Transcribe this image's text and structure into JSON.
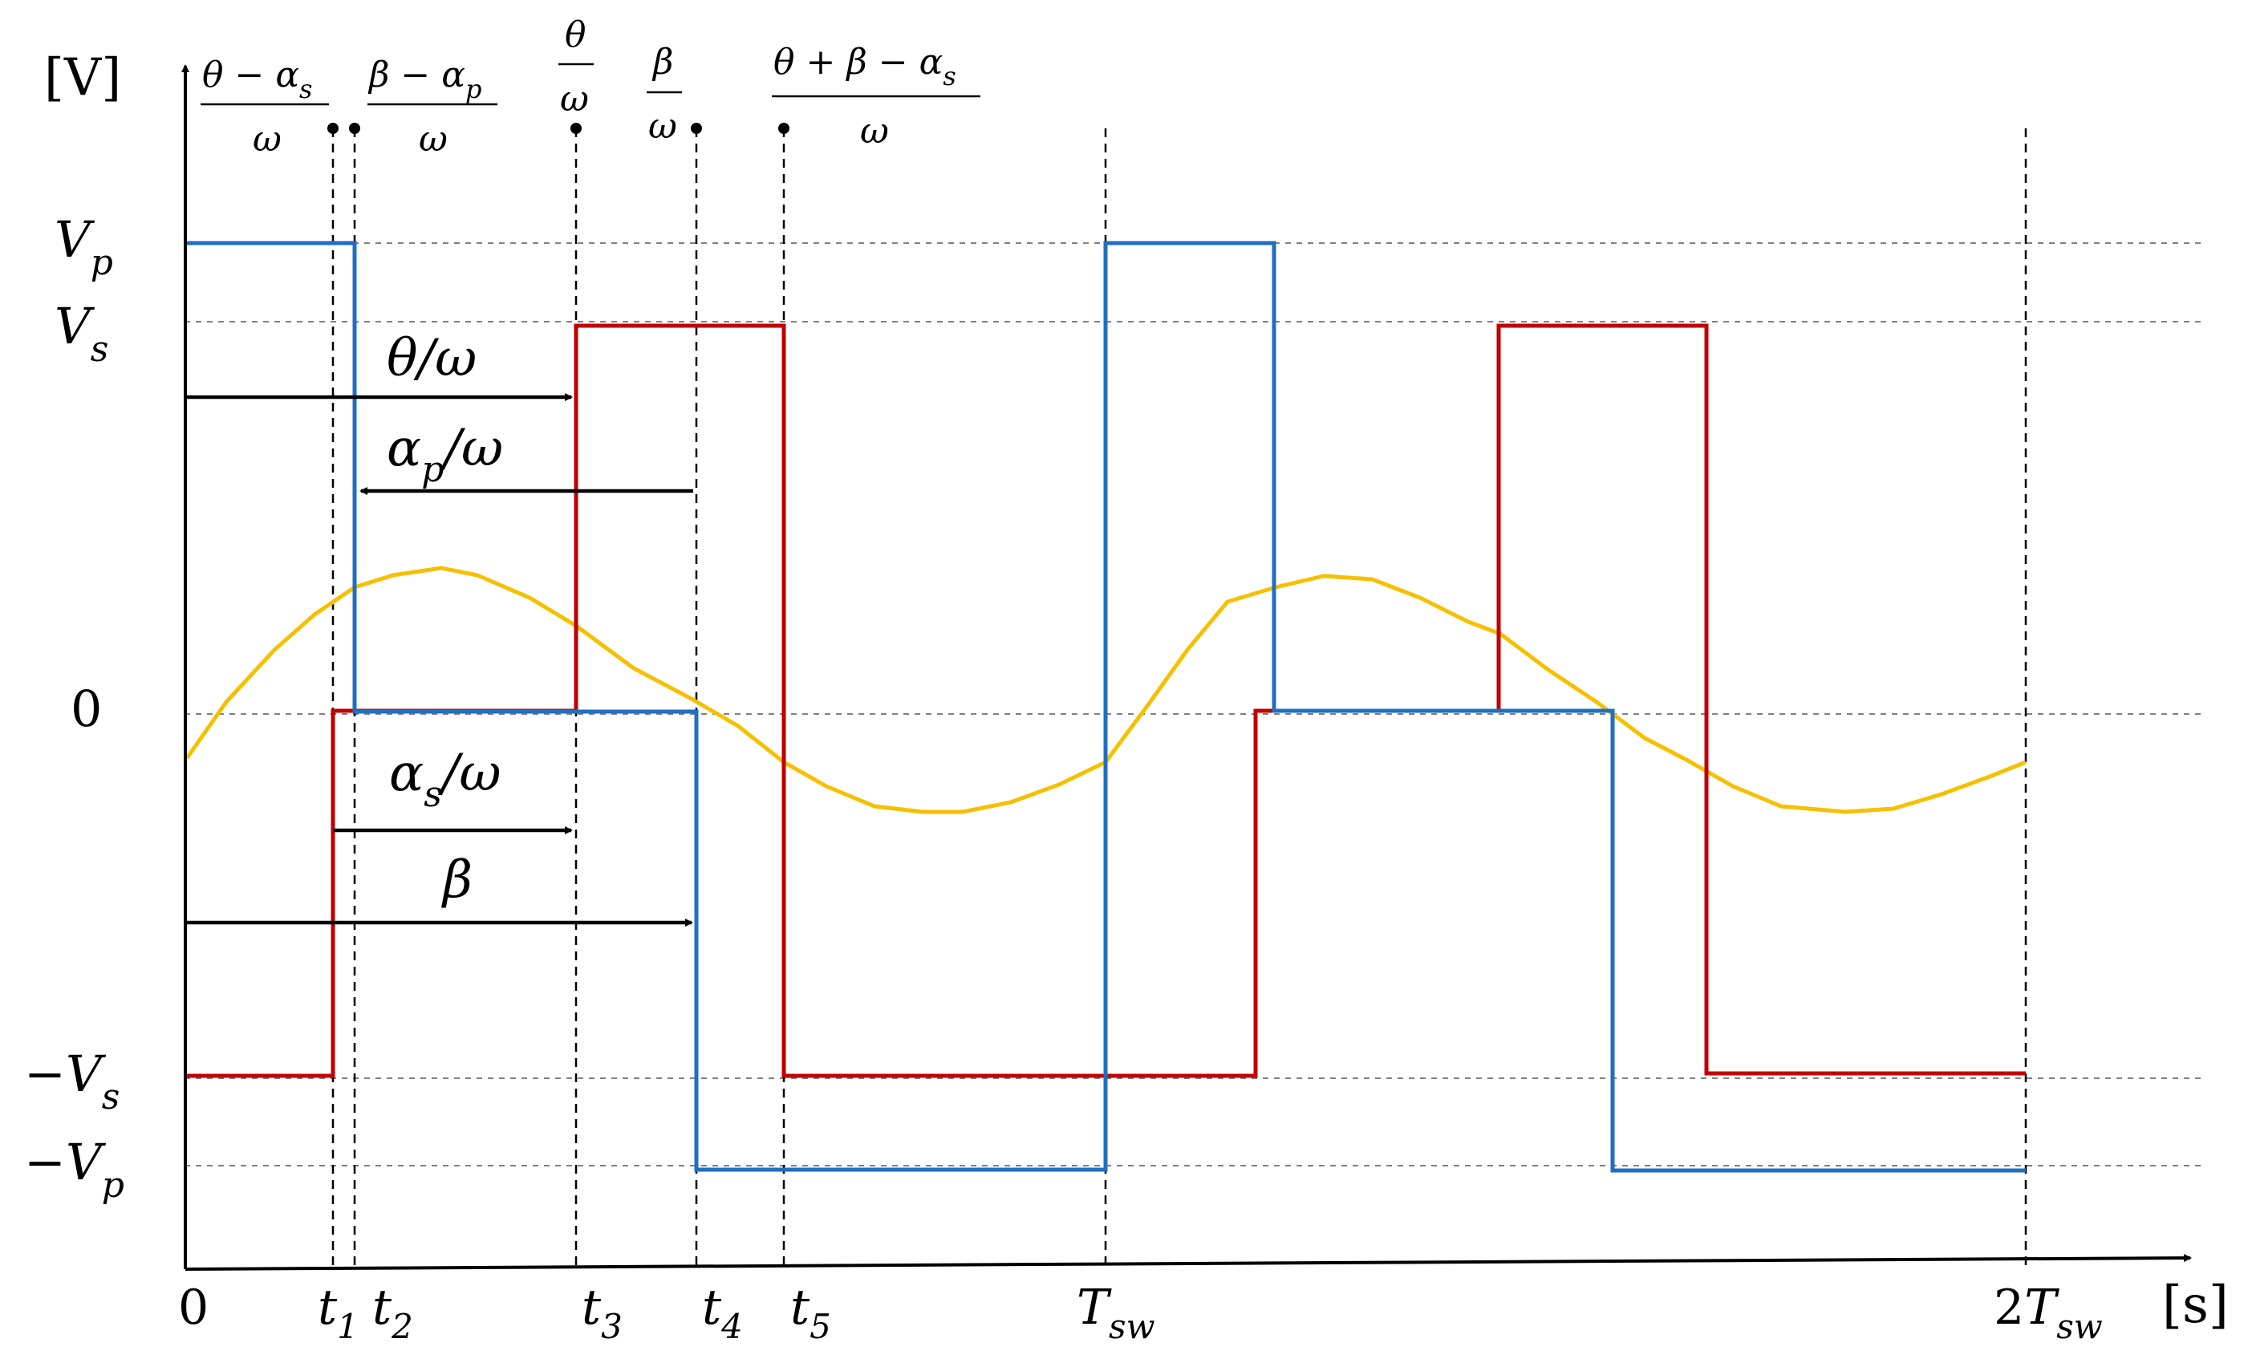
{
  "axes": {
    "y_unit": "[V]",
    "x_unit": "[s]"
  },
  "y_levels": {
    "vp": {
      "base": "V",
      "sub": "p"
    },
    "vs": {
      "base": "V",
      "sub": "s"
    },
    "zero": "0",
    "neg_vs": {
      "base": "−V",
      "sub": "s"
    },
    "neg_vp": {
      "base": "−V",
      "sub": "p"
    }
  },
  "x_ticks": {
    "zero": "0",
    "t1": {
      "base": "t",
      "sub": "1"
    },
    "t2": {
      "base": "t",
      "sub": "2"
    },
    "t3": {
      "base": "t",
      "sub": "3"
    },
    "t4": {
      "base": "t",
      "sub": "4"
    },
    "t5": {
      "base": "t",
      "sub": "5"
    },
    "tsw": {
      "base": "T",
      "sub": "sw"
    },
    "two_tsw": {
      "coef": "2",
      "base": "T",
      "sub": "sw"
    }
  },
  "top_fractions": {
    "f1": {
      "num_a": "θ − α",
      "num_sub": "s",
      "den": "ω"
    },
    "f2": {
      "num_a": "β − α",
      "num_sub": "p",
      "den": "ω"
    },
    "f3": {
      "num": "θ",
      "den": "ω"
    },
    "f4": {
      "num": "β",
      "den": "ω"
    },
    "f5": {
      "num": "θ + β − α",
      "num_sub": "s",
      "den": "ω"
    }
  },
  "annotations": {
    "theta": "θ/ω",
    "alpha_p": {
      "a": "α",
      "sub": "p",
      "b": "/ω"
    },
    "alpha_s": {
      "a": "α",
      "sub": "s",
      "b": "/ω"
    },
    "beta": "β"
  },
  "colors": {
    "primary_voltage": "#1F6FC0",
    "secondary_voltage": "#C00000",
    "current": "#F5C000"
  }
}
